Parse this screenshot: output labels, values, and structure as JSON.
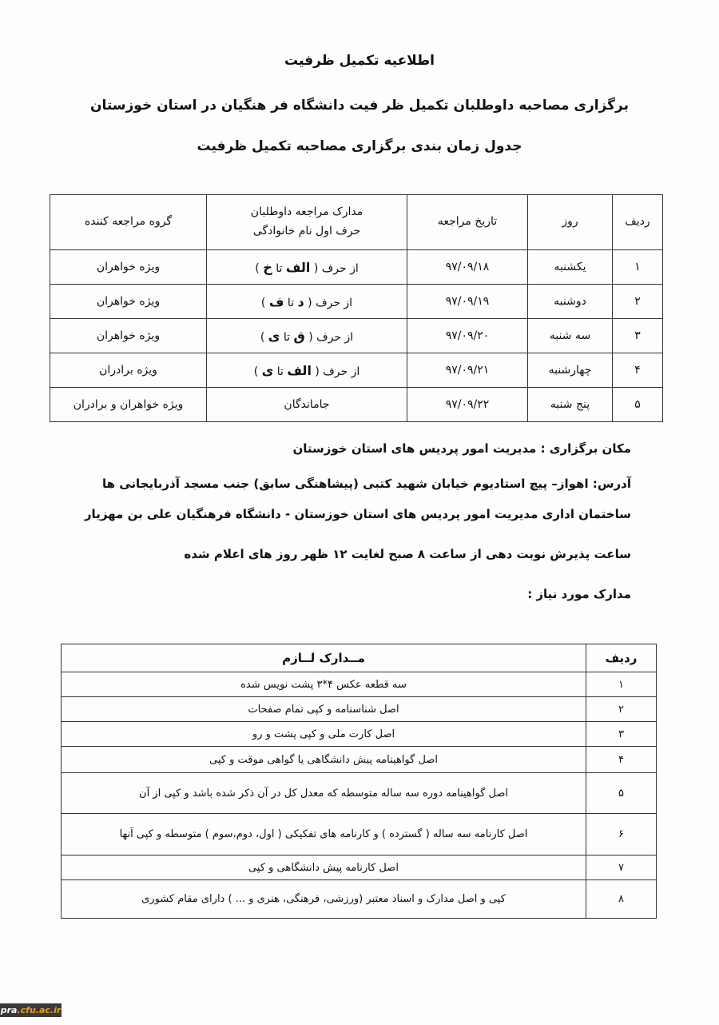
{
  "title": "اطلاعیه تکمیل ظرفیت",
  "subtitle": "برگزاری مصاحبه داوطلبان تکمیل ظر فیت دانشگاه فر هنگیان در استان خوزستان",
  "schedule_title": "جدول زمان بندی برگزاری مصاحبه تکمیل ظرفیت",
  "schedule": {
    "headers": {
      "row": "ردیف",
      "day": "روز",
      "date": "تاریخ مراجعه",
      "docs_1": "مدارک مراجعه داوطلبان",
      "docs_2": "حرف اول نام خانوادگی",
      "group": "گروه مراجعه کننده"
    },
    "rows": [
      {
        "row": "۱",
        "day": "یکشنبه",
        "date": "۹۷/۰۹/۱۸",
        "letters_prefix": "از حرف (",
        "from": "الف",
        "to_word": "تا",
        "to": "خ",
        "close": ")",
        "group": "ویژه خواهران"
      },
      {
        "row": "۲",
        "day": "دوشنبه",
        "date": "۹۷/۰۹/۱۹",
        "letters_prefix": "از حرف (",
        "from": "د",
        "to_word": "تا",
        "to": "ف",
        "close": ")",
        "group": "ویژه خواهران"
      },
      {
        "row": "۳",
        "day": "سه شنبه",
        "date": "۹۷/۰۹/۲۰",
        "letters_prefix": "از حرف (",
        "from": "ق",
        "to_word": "تا",
        "to": "ی",
        "close": ")",
        "group": "ویژه خواهران"
      },
      {
        "row": "۴",
        "day": "چهارشنبه",
        "date": "۹۷/۰۹/۲۱",
        "letters_prefix": "از حرف (",
        "from": "الف",
        "to_word": "تا",
        "to": "ی",
        "close": ")",
        "group": "ویژه برادران"
      },
      {
        "row": "۵",
        "day": "پنج شنبه",
        "date": "۹۷/۰۹/۲۲",
        "letters_text": "جاماندگان",
        "group": "ویژه خواهران و برادران"
      }
    ]
  },
  "venue": "مکان برگزاری : مدیریت امور پردیس های استان خوزستان",
  "address_1": "آدرس: اهواز– پیچ استادیوم خیابان شهید کتبی (پیشاهنگی سابق) جنب مسجد آذربایجانی ها",
  "address_2": "ساختمان اداری مدیریت امور پردیس های استان خوزستان - دانشگاه فرهنگیان علی بن مهزیار",
  "hours": "ساعت پذیرش نوبت دهی از ساعت ۸ صبح لغایت ۱۲ ظهر  روز های اعلام شده",
  "docs_label": "مدارک مورد نیاز :",
  "documents": {
    "headers": {
      "row": "ردیف",
      "docs": "مــدارک لــازم"
    },
    "rows": [
      {
        "row": "۱",
        "text": "سه قطعه عکس ۴*۳ پشت نویس شده"
      },
      {
        "row": "۲",
        "text": "اصل شناسنامه و کپی تمام صفحات"
      },
      {
        "row": "۳",
        "text": "اصل کارت ملی و کپی پشت و رو"
      },
      {
        "row": "۴",
        "text": "اصل گواهینامه پیش دانشگاهی یا گواهی موقت و کپی"
      },
      {
        "row": "۵",
        "text": "اصل گواهینامه دوره سه ساله متوسطه که معدل کل در آن ذکر شده باشد و کپی از آن"
      },
      {
        "row": "۶",
        "text": "اصل کارنامه سه ساله ( گسترده ) و کارنامه های تفکیکی ( اول، دوم،سوم ) متوسطه و کپی آنها"
      },
      {
        "row": "۷",
        "text": "اصل کارنامه پیش دانشگاهی و کپی"
      },
      {
        "row": "۸",
        "text": "کپی و اصل مدارک و اسناد معتبر  (ورزشی، فرهنگی، هنری و ... ) دارای مقام کشوری"
      }
    ]
  },
  "watermark": {
    "part1": "pra",
    "part2": ".cfu.ac.ir"
  },
  "colors": {
    "watermark_bg": "#3a3a3a",
    "watermark_accent": "#e8a020"
  }
}
